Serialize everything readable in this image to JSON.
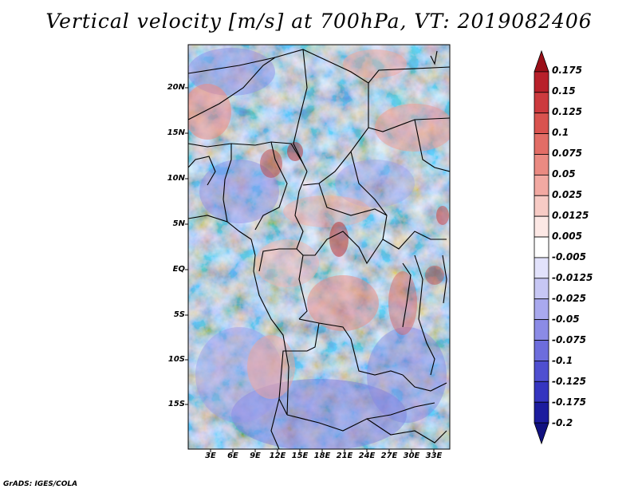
{
  "title": "Vertical velocity [m/s] at 700hPa, VT: 2019082406",
  "footer": "GrADS: IGES/COLA",
  "latitude_labels": [
    "20N",
    "15N",
    "10N",
    "5N",
    "EQ",
    "5S",
    "10S",
    "15S"
  ],
  "longitude_labels": [
    "3E",
    "6E",
    "9E",
    "12E",
    "15E",
    "18E",
    "21E",
    "24E",
    "27E",
    "30E",
    "33E"
  ],
  "colorbar": {
    "labels": [
      "0.175",
      "0.15",
      "0.125",
      "0.1",
      "0.075",
      "0.05",
      "0.025",
      "0.0125",
      "0.005",
      "-0.005",
      "-0.0125",
      "-0.025",
      "-0.05",
      "-0.075",
      "-0.1",
      "-0.125",
      "-0.175",
      "-0.2"
    ],
    "colors": [
      "#9a0f18",
      "#b8202a",
      "#cc3a3e",
      "#d9534f",
      "#e26d66",
      "#ea8a82",
      "#f2a9a2",
      "#f7cbc5",
      "#fce8e5",
      "#ffffff",
      "#e2e2fb",
      "#c7c7f4",
      "#a9a9ee",
      "#8b8be6",
      "#6d6ddc",
      "#4f4fd0",
      "#3535c0",
      "#1c1c9e",
      "#111180"
    ]
  }
}
